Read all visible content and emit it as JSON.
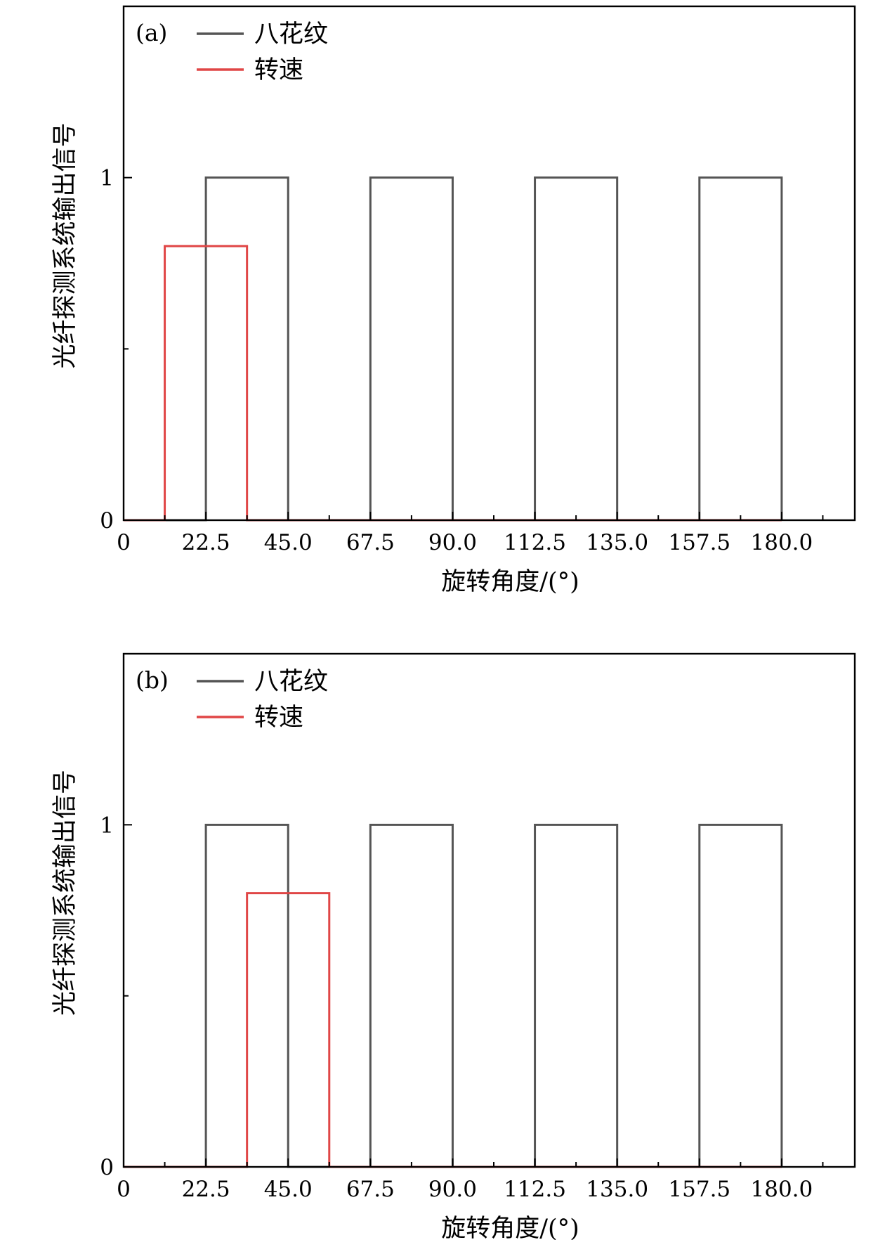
{
  "chart_data": [
    {
      "type": "line",
      "panel_label": "(a)",
      "xlabel": "旋转角度/(°)",
      "ylabel": "光纤探测系统输出信号",
      "xlim": [
        0,
        200
      ],
      "ylim": [
        0,
        1.5
      ],
      "x_ticks": [
        0,
        22.5,
        45,
        67.5,
        90,
        112.5,
        135,
        157.5,
        180
      ],
      "x_tick_labels": [
        "0",
        "22.5",
        "45.0",
        "67.5",
        "90.0",
        "112.5",
        "135.0",
        "157.5",
        "180.0"
      ],
      "x_minor_ticks": [
        11.25,
        33.75,
        56.25,
        78.75,
        101.25,
        123.75,
        146.25,
        168.75,
        191.25
      ],
      "y_ticks": [
        0,
        1
      ],
      "y_tick_labels": [
        "0",
        "1"
      ],
      "y_minor_ticks": [
        0.5
      ],
      "grid": false,
      "legend_position": "top-left",
      "series": [
        {
          "name": "八花纹",
          "color": "#555555",
          "x": [
            0,
            22.5,
            22.5,
            45,
            45,
            67.5,
            67.5,
            90,
            90,
            112.5,
            112.5,
            135,
            135,
            157.5,
            157.5,
            180,
            180
          ],
          "y": [
            0,
            0,
            1,
            1,
            0,
            0,
            1,
            1,
            0,
            0,
            1,
            1,
            0,
            0,
            1,
            1,
            0
          ]
        },
        {
          "name": "转速",
          "color": "#e04646",
          "x": [
            0,
            11.25,
            11.25,
            33.75,
            33.75,
            180
          ],
          "y": [
            0,
            0,
            0.8,
            0.8,
            0,
            0
          ]
        }
      ]
    },
    {
      "type": "line",
      "panel_label": "(b)",
      "xlabel": "旋转角度/(°)",
      "ylabel": "光纤探测系统输出信号",
      "xlim": [
        0,
        200
      ],
      "ylim": [
        0,
        1.5
      ],
      "x_ticks": [
        0,
        22.5,
        45,
        67.5,
        90,
        112.5,
        135,
        157.5,
        180
      ],
      "x_tick_labels": [
        "0",
        "22.5",
        "45.0",
        "67.5",
        "90.0",
        "112.5",
        "135.0",
        "157.5",
        "180.0"
      ],
      "x_minor_ticks": [
        11.25,
        33.75,
        56.25,
        78.75,
        101.25,
        123.75,
        146.25,
        168.75,
        191.25
      ],
      "y_ticks": [
        0,
        1
      ],
      "y_tick_labels": [
        "0",
        "1"
      ],
      "y_minor_ticks": [
        0.5
      ],
      "grid": false,
      "legend_position": "top-left",
      "series": [
        {
          "name": "八花纹",
          "color": "#555555",
          "x": [
            0,
            22.5,
            22.5,
            45,
            45,
            67.5,
            67.5,
            90,
            90,
            112.5,
            112.5,
            135,
            135,
            157.5,
            157.5,
            180,
            180
          ],
          "y": [
            0,
            0,
            1,
            1,
            0,
            0,
            1,
            1,
            0,
            0,
            1,
            1,
            0,
            0,
            1,
            1,
            0
          ]
        },
        {
          "name": "转速",
          "color": "#e04646",
          "x": [
            0,
            33.75,
            33.75,
            56.25,
            56.25,
            180
          ],
          "y": [
            0,
            0,
            0.8,
            0.8,
            0,
            0
          ]
        }
      ]
    }
  ]
}
